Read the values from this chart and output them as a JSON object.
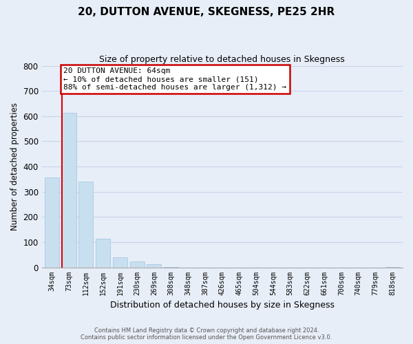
{
  "title": "20, DUTTON AVENUE, SKEGNESS, PE25 2HR",
  "subtitle": "Size of property relative to detached houses in Skegness",
  "xlabel": "Distribution of detached houses by size in Skegness",
  "ylabel": "Number of detached properties",
  "bar_labels": [
    "34sqm",
    "73sqm",
    "112sqm",
    "152sqm",
    "191sqm",
    "230sqm",
    "269sqm",
    "308sqm",
    "348sqm",
    "387sqm",
    "426sqm",
    "465sqm",
    "504sqm",
    "544sqm",
    "583sqm",
    "622sqm",
    "661sqm",
    "700sqm",
    "740sqm",
    "779sqm",
    "818sqm"
  ],
  "bar_values": [
    357,
    612,
    341,
    114,
    40,
    22,
    13,
    2,
    0,
    0,
    0,
    0,
    0,
    0,
    0,
    0,
    0,
    0,
    0,
    0,
    2
  ],
  "bar_color": "#c8dff0",
  "bar_edge_color": "#a8c8e0",
  "property_line_color": "#dd0000",
  "ylim": [
    0,
    800
  ],
  "yticks": [
    0,
    100,
    200,
    300,
    400,
    500,
    600,
    700,
    800
  ],
  "grid_color": "#c8d4e8",
  "ann_line1": "20 DUTTON AVENUE: 64sqm",
  "ann_line2": "← 10% of detached houses are smaller (151)",
  "ann_line3": "88% of semi-detached houses are larger (1,312) →",
  "annotation_box_color": "#ffffff",
  "annotation_box_edge": "#cc0000",
  "footer_line1": "Contains HM Land Registry data © Crown copyright and database right 2024.",
  "footer_line2": "Contains public sector information licensed under the Open Government Licence v3.0.",
  "bg_color": "#e8eef8",
  "plot_bg_color": "#e8eef8"
}
